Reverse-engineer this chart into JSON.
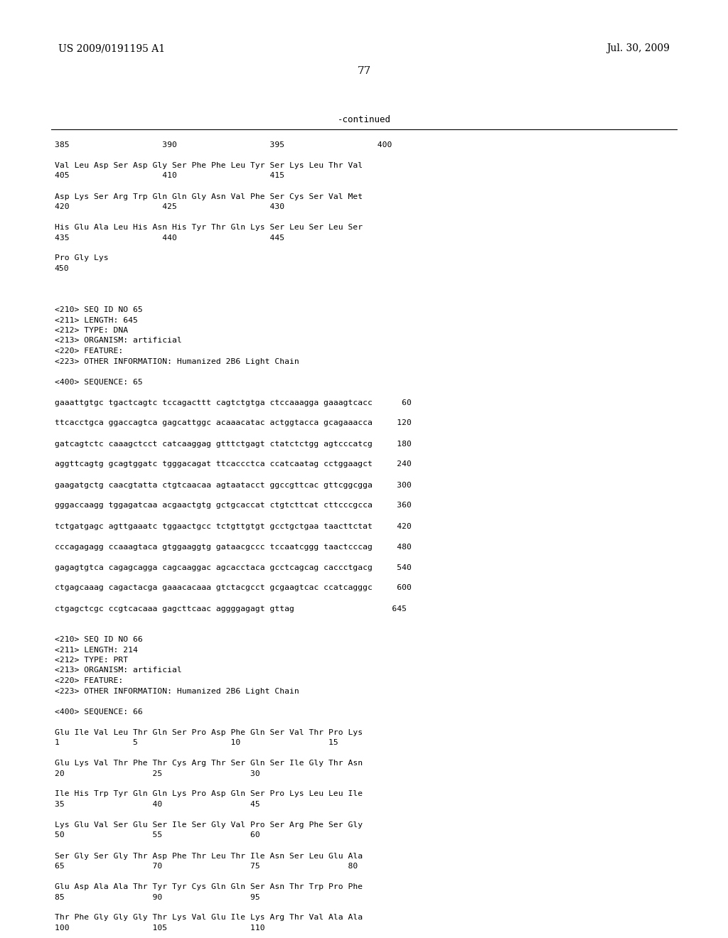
{
  "header_left": "US 2009/0191195 A1",
  "header_right": "Jul. 30, 2009",
  "page_number": "77",
  "continued_label": "-continued",
  "background_color": "#ffffff",
  "text_color": "#000000",
  "content_lines": [
    "385                   390                   395                   400",
    "",
    "Val Leu Asp Ser Asp Gly Ser Phe Phe Leu Tyr Ser Lys Leu Thr Val",
    "405                   410                   415",
    "",
    "Asp Lys Ser Arg Trp Gln Gln Gly Asn Val Phe Ser Cys Ser Val Met",
    "420                   425                   430",
    "",
    "His Glu Ala Leu His Asn His Tyr Thr Gln Lys Ser Leu Ser Leu Ser",
    "435                   440                   445",
    "",
    "Pro Gly Lys",
    "450",
    "",
    "",
    "",
    "<210> SEQ ID NO 65",
    "<211> LENGTH: 645",
    "<212> TYPE: DNA",
    "<213> ORGANISM: artificial",
    "<220> FEATURE:",
    "<223> OTHER INFORMATION: Humanized 2B6 Light Chain",
    "",
    "<400> SEQUENCE: 65",
    "",
    "gaaattgtgc tgactcagtc tccagacttt cagtctgtga ctccaaagga gaaagtcacc      60",
    "",
    "ttcacctgca ggaccagtca gagcattggc acaaacatac actggtacca gcagaaacca     120",
    "",
    "gatcagtctc caaagctcct catcaaggag gtttctgagt ctatctctgg agtcccatcg     180",
    "",
    "aggttcagtg gcagtggatc tgggacagat ttcaccctca ccatcaatag cctggaagct     240",
    "",
    "gaagatgctg caacgtatta ctgtcaacaa agtaatacct ggccgttcac gttcggcgga     300",
    "",
    "gggaccaagg tggagatcaa acgaactgtg gctgcaccat ctgtcttcat cttcccgcca     360",
    "",
    "tctgatgagc agttgaaatc tggaactgcc tctgttgtgt gcctgctgaa taacttctat     420",
    "",
    "cccagagagg ccaaagtaca gtggaaggtg gataacgccc tccaatcggg taactcccag     480",
    "",
    "gagagtgtca cagagcagga cagcaaggac agcacctaca gcctcagcag caccctgacg     540",
    "",
    "ctgagcaaag cagactacga gaaacacaaa gtctacgcct gcgaagtcac ccatcagggc     600",
    "",
    "ctgagctcgc ccgtcacaaa gagcttcaac aggggagagt gttag                    645",
    "",
    "",
    "<210> SEQ ID NO 66",
    "<211> LENGTH: 214",
    "<212> TYPE: PRT",
    "<213> ORGANISM: artificial",
    "<220> FEATURE:",
    "<223> OTHER INFORMATION: Humanized 2B6 Light Chain",
    "",
    "<400> SEQUENCE: 66",
    "",
    "Glu Ile Val Leu Thr Gln Ser Pro Asp Phe Gln Ser Val Thr Pro Lys",
    "1               5                   10                  15",
    "",
    "Glu Lys Val Thr Phe Thr Cys Arg Thr Ser Gln Ser Ile Gly Thr Asn",
    "20                  25                  30",
    "",
    "Ile His Trp Tyr Gln Gln Lys Pro Asp Gln Ser Pro Lys Leu Leu Ile",
    "35                  40                  45",
    "",
    "Lys Glu Val Ser Glu Ser Ile Ser Gly Val Pro Ser Arg Phe Ser Gly",
    "50                  55                  60",
    "",
    "Ser Gly Ser Gly Thr Asp Phe Thr Leu Thr Ile Asn Ser Leu Glu Ala",
    "65                  70                  75                  80",
    "",
    "Glu Asp Ala Ala Thr Tyr Tyr Cys Gln Gln Ser Asn Thr Trp Pro Phe",
    "85                  90                  95",
    "",
    "Thr Phe Gly Gly Gly Thr Lys Val Glu Ile Lys Arg Thr Val Ala Ala",
    "100                 105                 110"
  ]
}
